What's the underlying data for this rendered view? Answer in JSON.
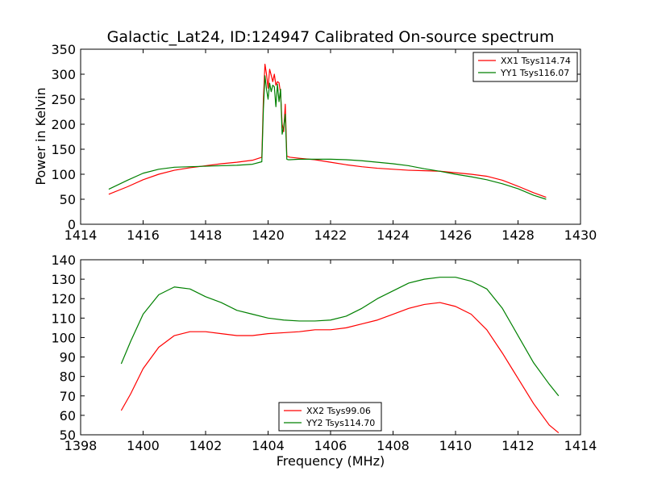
{
  "figure": {
    "title": "Galactic_Lat24, ID:124947 Calibrated On-source spectrum"
  },
  "chart_data": [
    {
      "type": "line",
      "title": "Galactic_Lat24, ID:124947 Calibrated On-source spectrum",
      "xlabel": "",
      "ylabel": "Power in Kelvin",
      "xlim": [
        1414,
        1430
      ],
      "ylim": [
        0,
        350
      ],
      "xticks": [
        1414,
        1416,
        1418,
        1420,
        1422,
        1424,
        1426,
        1428,
        1430
      ],
      "yticks": [
        0,
        50,
        100,
        150,
        200,
        250,
        300,
        350
      ],
      "grid": false,
      "legend_position": "top-right",
      "series": [
        {
          "name": "XX1 Tsys114.74",
          "color": "#ff0000",
          "x": [
            1414.9,
            1415.5,
            1416.0,
            1416.5,
            1417.0,
            1417.5,
            1418.0,
            1418.5,
            1419.0,
            1419.5,
            1419.8,
            1419.85,
            1419.9,
            1419.95,
            1420.0,
            1420.05,
            1420.1,
            1420.15,
            1420.2,
            1420.25,
            1420.3,
            1420.35,
            1420.4,
            1420.45,
            1420.5,
            1420.55,
            1420.6,
            1420.65,
            1420.7,
            1421.0,
            1421.5,
            1422.0,
            1422.5,
            1423.0,
            1423.5,
            1424.0,
            1424.5,
            1425.0,
            1425.5,
            1426.0,
            1426.5,
            1427.0,
            1427.5,
            1428.0,
            1428.5,
            1428.9
          ],
          "values": [
            60,
            75,
            89,
            100,
            108,
            113,
            117,
            121,
            124,
            128,
            134,
            250,
            320,
            300,
            272,
            310,
            298,
            285,
            300,
            278,
            285,
            283,
            262,
            200,
            185,
            240,
            136,
            135,
            134,
            132,
            129,
            124,
            119,
            115,
            112,
            110,
            108,
            107,
            106,
            103,
            100,
            96,
            88,
            76,
            63,
            54
          ]
        },
        {
          "name": "YY1 Tsys116.07",
          "color": "#008000",
          "x": [
            1414.9,
            1415.5,
            1416.0,
            1416.5,
            1417.0,
            1417.5,
            1418.0,
            1418.5,
            1419.0,
            1419.5,
            1419.8,
            1419.85,
            1419.9,
            1419.95,
            1420.0,
            1420.05,
            1420.1,
            1420.15,
            1420.2,
            1420.25,
            1420.3,
            1420.35,
            1420.4,
            1420.45,
            1420.5,
            1420.55,
            1420.6,
            1420.65,
            1420.7,
            1421.0,
            1421.5,
            1422.0,
            1422.5,
            1423.0,
            1423.5,
            1424.0,
            1424.5,
            1425.0,
            1425.5,
            1426.0,
            1426.5,
            1427.0,
            1427.5,
            1428.0,
            1428.5,
            1428.9
          ],
          "values": [
            70,
            88,
            102,
            110,
            114,
            115,
            116,
            117,
            118,
            120,
            125,
            230,
            297,
            270,
            250,
            282,
            265,
            278,
            275,
            235,
            280,
            245,
            270,
            180,
            195,
            220,
            130,
            129,
            129,
            130,
            130,
            130,
            129,
            127,
            124,
            121,
            117,
            111,
            106,
            100,
            95,
            89,
            81,
            71,
            58,
            50
          ]
        }
      ]
    },
    {
      "type": "line",
      "title": "",
      "xlabel": "Frequency (MHz)",
      "ylabel": "",
      "xlim": [
        1398,
        1414
      ],
      "ylim": [
        50,
        140
      ],
      "xticks": [
        1398,
        1400,
        1402,
        1404,
        1406,
        1408,
        1410,
        1412,
        1414
      ],
      "yticks": [
        50,
        60,
        70,
        80,
        90,
        100,
        110,
        120,
        130,
        140
      ],
      "grid": false,
      "legend_position": "bottom-center",
      "series": [
        {
          "name": "XX2 Tsys99.06",
          "color": "#ff0000",
          "x": [
            1399.3,
            1399.6,
            1400.0,
            1400.5,
            1401.0,
            1401.5,
            1402.0,
            1402.5,
            1403.0,
            1403.5,
            1404.0,
            1404.5,
            1405.0,
            1405.5,
            1406.0,
            1406.5,
            1407.0,
            1407.5,
            1408.0,
            1408.5,
            1409.0,
            1409.5,
            1410.0,
            1410.5,
            1411.0,
            1411.5,
            1412.0,
            1412.5,
            1413.0,
            1413.3
          ],
          "values": [
            62.5,
            71,
            84,
            95,
            101,
            103,
            103,
            102,
            101,
            101,
            102,
            102.5,
            103,
            104,
            104,
            105,
            107,
            109,
            112,
            115,
            117,
            118,
            116,
            112,
            104,
            92,
            79,
            66,
            55,
            51
          ]
        },
        {
          "name": "YY2 Tsys114.70",
          "color": "#008000",
          "x": [
            1399.3,
            1399.6,
            1400.0,
            1400.5,
            1401.0,
            1401.5,
            1402.0,
            1402.5,
            1403.0,
            1403.5,
            1404.0,
            1404.5,
            1405.0,
            1405.5,
            1406.0,
            1406.5,
            1407.0,
            1407.5,
            1408.0,
            1408.5,
            1409.0,
            1409.5,
            1410.0,
            1410.5,
            1411.0,
            1411.5,
            1412.0,
            1412.5,
            1413.0,
            1413.3
          ],
          "values": [
            86.5,
            98,
            112,
            122,
            126,
            125,
            121,
            118,
            114,
            112,
            110,
            109,
            108.5,
            108.5,
            109,
            111,
            115,
            120,
            124,
            128,
            130,
            131,
            131,
            129,
            125,
            115,
            101,
            87,
            76,
            70
          ]
        }
      ]
    }
  ]
}
